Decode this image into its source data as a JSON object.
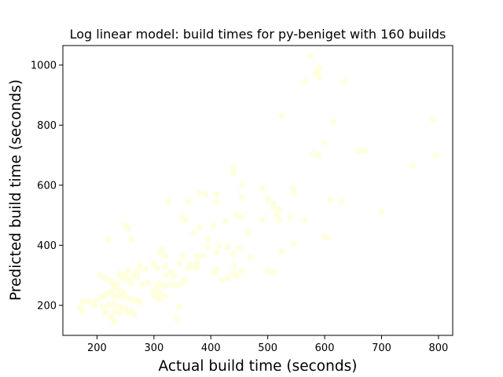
{
  "chart_data": {
    "type": "scatter",
    "title": "Log linear model: build times for py-beniget with 160 builds",
    "xlabel": "Actual build time (seconds)",
    "ylabel": "Predicted build time (seconds)",
    "xlim": [
      140,
      825
    ],
    "ylim": [
      100,
      1065
    ],
    "xticks": [
      200,
      300,
      400,
      500,
      600,
      700,
      800
    ],
    "yticks": [
      200,
      400,
      600,
      800,
      1000
    ],
    "grid": false,
    "marker_color": "#ffffe0",
    "series": [
      {
        "points": [
          [
            575,
            1030
          ],
          [
            590,
            990
          ],
          [
            585,
            975
          ],
          [
            590,
            960
          ],
          [
            565,
            945
          ],
          [
            635,
            945
          ],
          [
            525,
            830
          ],
          [
            615,
            810
          ],
          [
            790,
            820
          ],
          [
            600,
            740
          ],
          [
            660,
            715
          ],
          [
            670,
            715
          ],
          [
            580,
            705
          ],
          [
            590,
            700
          ],
          [
            795,
            700
          ],
          [
            755,
            665
          ],
          [
            440,
            660
          ],
          [
            440,
            640
          ],
          [
            490,
            590
          ],
          [
            545,
            590
          ],
          [
            545,
            575
          ],
          [
            380,
            575
          ],
          [
            390,
            570
          ],
          [
            410,
            570
          ],
          [
            455,
            600
          ],
          [
            455,
            560
          ],
          [
            500,
            555
          ],
          [
            610,
            550
          ],
          [
            630,
            545
          ],
          [
            360,
            545
          ],
          [
            410,
            545
          ],
          [
            325,
            545
          ],
          [
            510,
            540
          ],
          [
            510,
            525
          ],
          [
            520,
            520
          ],
          [
            350,
            495
          ],
          [
            355,
            485
          ],
          [
            455,
            495
          ],
          [
            445,
            500
          ],
          [
            540,
            495
          ],
          [
            565,
            485
          ],
          [
            700,
            510
          ],
          [
            515,
            500
          ],
          [
            520,
            485
          ],
          [
            425,
            480
          ],
          [
            405,
            465
          ],
          [
            380,
            460
          ],
          [
            370,
            440
          ],
          [
            395,
            420
          ],
          [
            250,
            465
          ],
          [
            255,
            455
          ],
          [
            220,
            420
          ],
          [
            260,
            420
          ],
          [
            465,
            440
          ],
          [
            490,
            485
          ],
          [
            600,
            430
          ],
          [
            605,
            425
          ],
          [
            415,
            400
          ],
          [
            395,
            395
          ],
          [
            430,
            395
          ],
          [
            450,
            390
          ],
          [
            545,
            405
          ],
          [
            525,
            380
          ],
          [
            315,
            385
          ],
          [
            310,
            380
          ],
          [
            320,
            365
          ],
          [
            385,
            365
          ],
          [
            375,
            365
          ],
          [
            410,
            375
          ],
          [
            440,
            370
          ],
          [
            410,
            320
          ],
          [
            405,
            310
          ],
          [
            470,
            360
          ],
          [
            350,
            365
          ],
          [
            345,
            340
          ],
          [
            365,
            335
          ],
          [
            375,
            340
          ],
          [
            360,
            325
          ],
          [
            440,
            330
          ],
          [
            455,
            315
          ],
          [
            440,
            305
          ],
          [
            445,
            300
          ],
          [
            430,
            290
          ],
          [
            420,
            285
          ],
          [
            375,
            325
          ],
          [
            300,
            340
          ],
          [
            320,
            330
          ],
          [
            305,
            325
          ],
          [
            285,
            320
          ],
          [
            275,
            330
          ],
          [
            270,
            310
          ],
          [
            255,
            315
          ],
          [
            250,
            300
          ],
          [
            240,
            305
          ],
          [
            265,
            300
          ],
          [
            270,
            295
          ],
          [
            245,
            290
          ],
          [
            255,
            285
          ],
          [
            260,
            275
          ],
          [
            235,
            270
          ],
          [
            280,
            270
          ],
          [
            290,
            275
          ],
          [
            310,
            270
          ],
          [
            320,
            265
          ],
          [
            305,
            260
          ],
          [
            330,
            270
          ],
          [
            340,
            265
          ],
          [
            350,
            275
          ],
          [
            355,
            285
          ],
          [
            335,
            295
          ],
          [
            320,
            300
          ],
          [
            330,
            310
          ],
          [
            205,
            300
          ],
          [
            215,
            290
          ],
          [
            225,
            280
          ],
          [
            230,
            265
          ],
          [
            235,
            255
          ],
          [
            240,
            250
          ],
          [
            245,
            245
          ],
          [
            225,
            245
          ],
          [
            220,
            240
          ],
          [
            215,
            235
          ],
          [
            210,
            230
          ],
          [
            205,
            225
          ],
          [
            230,
            230
          ],
          [
            240,
            230
          ],
          [
            250,
            225
          ],
          [
            260,
            220
          ],
          [
            270,
            215
          ],
          [
            275,
            210
          ],
          [
            300,
            235
          ],
          [
            305,
            225
          ],
          [
            310,
            220
          ],
          [
            320,
            230
          ],
          [
            310,
            240
          ],
          [
            300,
            250
          ],
          [
            200,
            215
          ],
          [
            195,
            210
          ],
          [
            185,
            215
          ],
          [
            175,
            210
          ],
          [
            170,
            190
          ],
          [
            175,
            180
          ],
          [
            195,
            200
          ],
          [
            210,
            195
          ],
          [
            220,
            200
          ],
          [
            230,
            205
          ],
          [
            240,
            195
          ],
          [
            250,
            190
          ],
          [
            260,
            180
          ],
          [
            265,
            170
          ],
          [
            230,
            180
          ],
          [
            215,
            175
          ],
          [
            225,
            160
          ],
          [
            230,
            145
          ],
          [
            255,
            175
          ],
          [
            240,
            175
          ],
          [
            345,
            195
          ],
          [
            340,
            155
          ],
          [
            510,
            310
          ],
          [
            500,
            315
          ]
        ]
      }
    ]
  }
}
